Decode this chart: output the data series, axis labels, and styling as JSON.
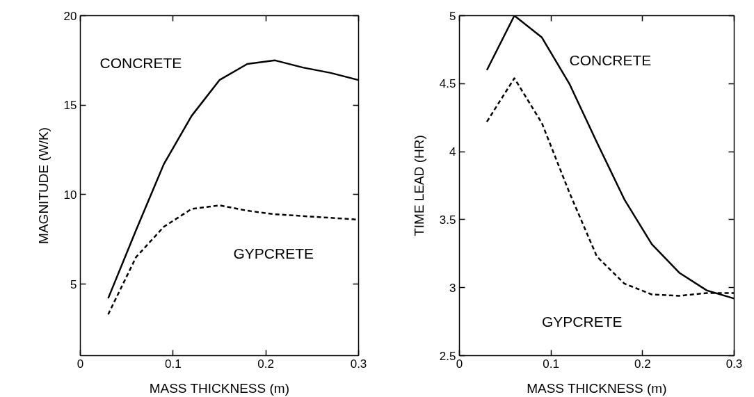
{
  "chart_data": [
    {
      "type": "line",
      "xlabel": "MASS THICKNESS (m)",
      "ylabel": "MAGNITUDE (W/K)",
      "x": [
        0.03,
        0.06,
        0.09,
        0.12,
        0.15,
        0.18,
        0.21,
        0.24,
        0.27,
        0.3
      ],
      "xlim": [
        0,
        0.3
      ],
      "xticks": [
        0,
        0.1,
        0.2,
        0.3
      ],
      "ylim": [
        1,
        20
      ],
      "yticks": [
        5,
        10,
        15,
        20
      ],
      "grid": false,
      "legend": false,
      "series": [
        {
          "name": "CONCRETE",
          "color": "#000000",
          "line_style": "solid",
          "values": [
            4.2,
            8.0,
            11.7,
            14.4,
            16.4,
            17.3,
            17.5,
            17.1,
            16.8,
            16.4
          ]
        },
        {
          "name": "GYPCRETE",
          "color": "#000000",
          "line_style": "dashed",
          "values": [
            3.3,
            6.5,
            8.2,
            9.2,
            9.4,
            9.1,
            8.9,
            8.8,
            8.7,
            8.6
          ]
        }
      ]
    },
    {
      "type": "line",
      "xlabel": "MASS THICKNESS (m)",
      "ylabel": "TIME LEAD (HR)",
      "x": [
        0.03,
        0.06,
        0.09,
        0.12,
        0.15,
        0.18,
        0.21,
        0.24,
        0.27,
        0.3
      ],
      "xlim": [
        0,
        0.3
      ],
      "xticks": [
        0,
        0.1,
        0.2,
        0.3
      ],
      "ylim": [
        2.5,
        5
      ],
      "yticks": [
        2.5,
        3,
        3.5,
        4,
        4.5,
        5
      ],
      "grid": false,
      "legend": false,
      "series": [
        {
          "name": "CONCRETE",
          "color": "#000000",
          "line_style": "solid",
          "values": [
            4.6,
            5.0,
            4.84,
            4.5,
            4.07,
            3.65,
            3.32,
            3.11,
            2.98,
            2.92
          ]
        },
        {
          "name": "GYPCRETE",
          "color": "#000000",
          "line_style": "dashed",
          "values": [
            4.22,
            4.54,
            4.21,
            3.7,
            3.23,
            3.03,
            2.95,
            2.94,
            2.96,
            2.96
          ]
        }
      ]
    }
  ]
}
